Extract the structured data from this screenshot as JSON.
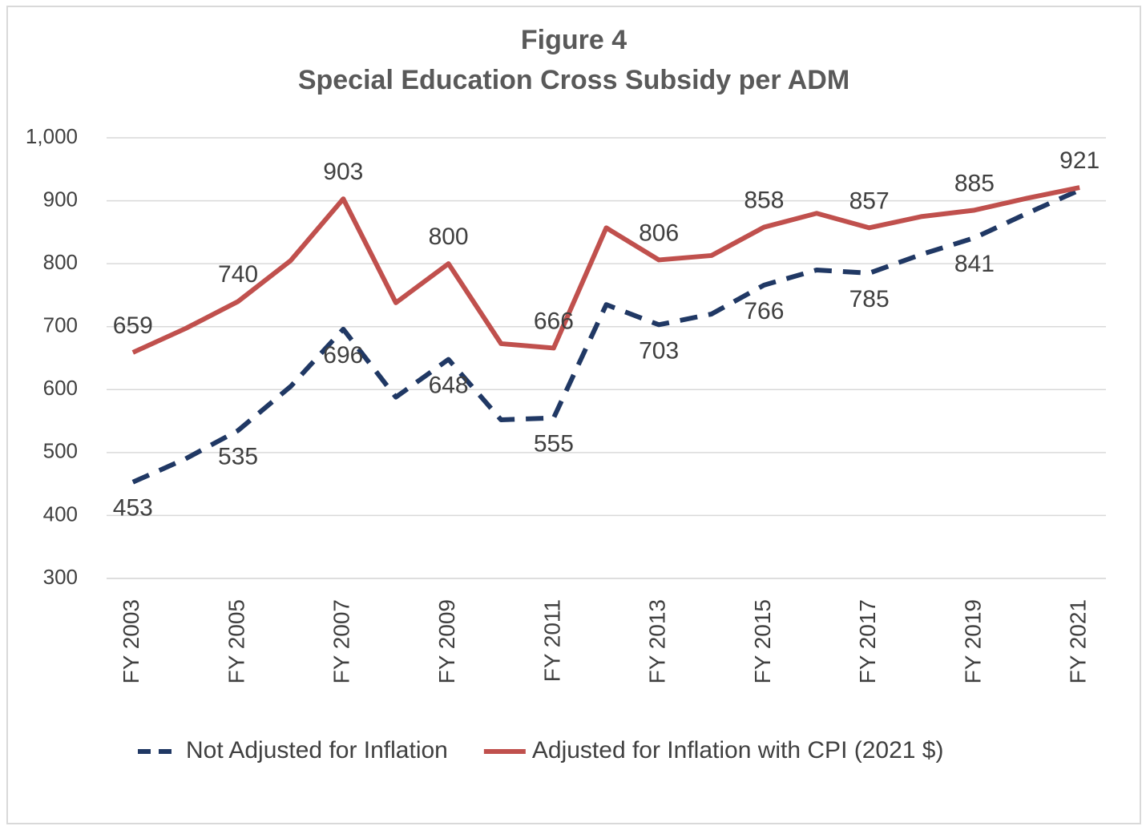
{
  "chart_data": {
    "type": "line",
    "title": "Figure 4",
    "subtitle": "Special Education Cross Subsidy per ADM",
    "categories": [
      "FY 2003",
      null,
      "FY 2005",
      null,
      "FY 2007",
      null,
      "FY 2009",
      null,
      "FY 2011",
      null,
      "FY 2013",
      null,
      "FY 2015",
      null,
      "FY 2017",
      null,
      "FY 2019",
      null,
      "FY 2021"
    ],
    "series": [
      {
        "name": "Not Adjusted for Inflation",
        "color": "#203864",
        "dashed": true,
        "values": [
          453,
          490,
          535,
          605,
          696,
          588,
          648,
          552,
          555,
          735,
          703,
          720,
          766,
          790,
          785,
          815,
          841,
          880,
          917
        ],
        "value_labels": [
          "453",
          null,
          "535",
          null,
          "696",
          null,
          "648",
          null,
          "555",
          null,
          "703",
          null,
          "766",
          null,
          "785",
          null,
          "841",
          null,
          null
        ]
      },
      {
        "name": "Adjusted for Inflation with CPI (2021 $)",
        "color": "#c0504d",
        "dashed": false,
        "values": [
          659,
          697,
          740,
          805,
          903,
          738,
          800,
          673,
          666,
          857,
          806,
          813,
          858,
          880,
          857,
          875,
          885,
          904,
          921
        ],
        "value_labels": [
          "659",
          null,
          "740",
          null,
          "903",
          null,
          "800",
          null,
          "666",
          null,
          "806",
          null,
          "858",
          null,
          "857",
          null,
          "885",
          null,
          "921"
        ]
      }
    ],
    "ylim": [
      300,
      1000
    ],
    "yticks": [
      300,
      400,
      500,
      600,
      700,
      800,
      900,
      {
        "value": 1000,
        "label": "1,000"
      }
    ],
    "grid": true,
    "legend": "bottom"
  }
}
